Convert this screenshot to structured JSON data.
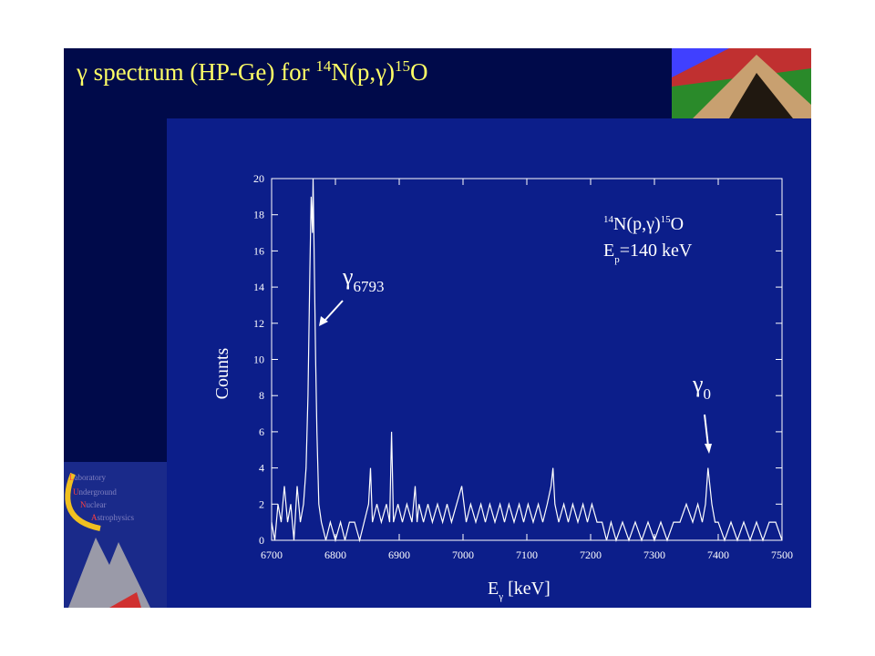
{
  "slide": {
    "title_parts": [
      "γ spectrum (HP-Ge) for ",
      "14",
      "N(p,γ)",
      "15",
      "O"
    ],
    "logo": [
      "L",
      "aboratory",
      "U",
      "nderground",
      "N",
      "uclear",
      "A",
      "strophysics"
    ]
  },
  "chart_data": {
    "type": "line",
    "xlabel_parts": [
      "E",
      "γ",
      " [keV]"
    ],
    "ylabel": "Counts",
    "annotations": {
      "reaction": [
        "14",
        "N(p,γ)",
        "15",
        "O"
      ],
      "energy": [
        "E",
        "p",
        "=140 keV"
      ],
      "peak_6793": [
        "γ",
        "6793"
      ],
      "peak_0": [
        "γ",
        "0"
      ]
    },
    "color": "#ffffff",
    "xlim": [
      6700,
      7500
    ],
    "xticks": [
      6700,
      6800,
      6900,
      7000,
      7100,
      7200,
      7300,
      7400,
      7500
    ],
    "ylim": [
      0,
      20
    ],
    "yticks": [
      0,
      2,
      4,
      6,
      8,
      10,
      12,
      14,
      16,
      18,
      20
    ],
    "x": [
      6700,
      6705,
      6710,
      6715,
      6720,
      6725,
      6730,
      6735,
      6740,
      6745,
      6750,
      6754,
      6757,
      6760,
      6762,
      6764,
      6765,
      6767,
      6769,
      6771,
      6774,
      6778,
      6785,
      6792,
      6800,
      6808,
      6815,
      6822,
      6830,
      6838,
      6845,
      6852,
      6855,
      6858,
      6865,
      6872,
      6880,
      6885,
      6888,
      6891,
      6898,
      6905,
      6912,
      6920,
      6925,
      6928,
      6931,
      6938,
      6945,
      6952,
      6960,
      6968,
      6975,
      6982,
      6990,
      6998,
      7005,
      7012,
      7020,
      7028,
      7035,
      7042,
      7050,
      7058,
      7065,
      7072,
      7080,
      7088,
      7095,
      7102,
      7110,
      7118,
      7125,
      7132,
      7138,
      7141,
      7144,
      7150,
      7158,
      7165,
      7172,
      7180,
      7188,
      7195,
      7202,
      7210,
      7218,
      7225,
      7232,
      7240,
      7250,
      7260,
      7270,
      7280,
      7290,
      7300,
      7310,
      7320,
      7330,
      7340,
      7350,
      7360,
      7368,
      7375,
      7380,
      7384,
      7387,
      7390,
      7395,
      7400,
      7410,
      7420,
      7430,
      7440,
      7450,
      7460,
      7470,
      7480,
      7490,
      7500
    ],
    "values": [
      1,
      0,
      2,
      1,
      3,
      1,
      2,
      0,
      3,
      1,
      2,
      4,
      8,
      15,
      19,
      17,
      20,
      15,
      10,
      6,
      2,
      1,
      0,
      1,
      0,
      1,
      0,
      1,
      1,
      0,
      1,
      2,
      4,
      1,
      2,
      1,
      2,
      1,
      6,
      1,
      2,
      1,
      2,
      1,
      3,
      1,
      2,
      1,
      2,
      1,
      2,
      1,
      2,
      1,
      2,
      3,
      1,
      2,
      1,
      2,
      1,
      2,
      1,
      2,
      1,
      2,
      1,
      2,
      1,
      2,
      1,
      2,
      1,
      2,
      3,
      4,
      2,
      1,
      2,
      1,
      2,
      1,
      2,
      1,
      2,
      1,
      1,
      0,
      1,
      0,
      1,
      0,
      1,
      0,
      1,
      0,
      1,
      0,
      1,
      1,
      2,
      1,
      2,
      1,
      2,
      4,
      3,
      2,
      1,
      1,
      0,
      1,
      0,
      1,
      0,
      1,
      0,
      1,
      1,
      0
    ]
  }
}
